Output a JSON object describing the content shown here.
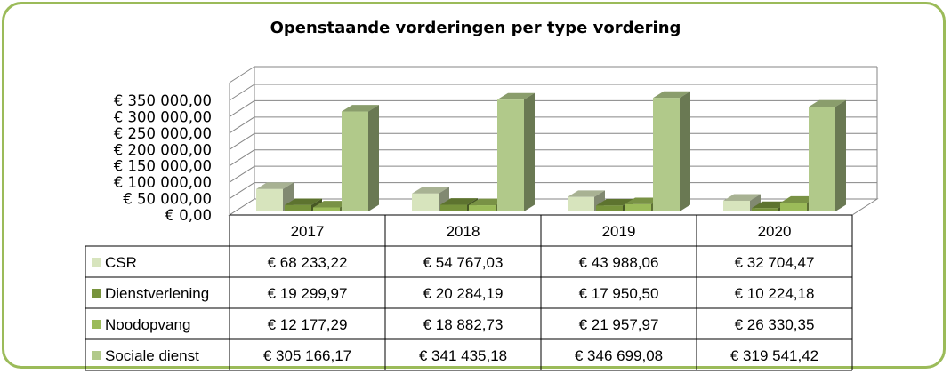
{
  "chart_data": {
    "type": "bar",
    "title": "Openstaande vorderingen per type vordering",
    "categories": [
      "2017",
      "2018",
      "2019",
      "2020"
    ],
    "ylim": [
      0,
      350000
    ],
    "y_ticks": [
      "€ 350 000,00",
      "€ 300 000,00",
      "€ 250 000,00",
      "€ 200 000,00",
      "€ 150 000,00",
      "€ 100 000,00",
      "€ 50 000,00",
      "€  0,00"
    ],
    "grid": true,
    "legend_placement": "data-table-left",
    "series": [
      {
        "name": "CSR",
        "color": "#d7e4bd",
        "values": [
          68233.22,
          54767.03,
          43988.06,
          32704.47
        ],
        "labels": [
          "€ 68 233,22",
          "€ 54 767,03",
          "€ 43 988,06",
          "€ 32 704,47"
        ]
      },
      {
        "name": "Dienstverlening",
        "color": "#77933c",
        "values": [
          19299.97,
          20284.19,
          17950.5,
          10224.18
        ],
        "labels": [
          "€ 19 299,97",
          "€ 20 284,19",
          "€ 17 950,50",
          "€ 10 224,18"
        ]
      },
      {
        "name": "Noodopvang",
        "color": "#9bbb59",
        "values": [
          12177.29,
          18882.73,
          21957.97,
          26330.35
        ],
        "labels": [
          "€ 12 177,29",
          "€ 18 882,73",
          "€ 21 957,97",
          "€ 26 330,35"
        ]
      },
      {
        "name": "Sociale dienst",
        "color": "#b1c98a",
        "values": [
          305166.17,
          341435.18,
          346699.08,
          319541.42
        ],
        "labels": [
          "€ 305 166,17",
          "€ 341 435,18",
          "€ 346 699,08",
          "€ 319 541,42"
        ]
      }
    ]
  }
}
